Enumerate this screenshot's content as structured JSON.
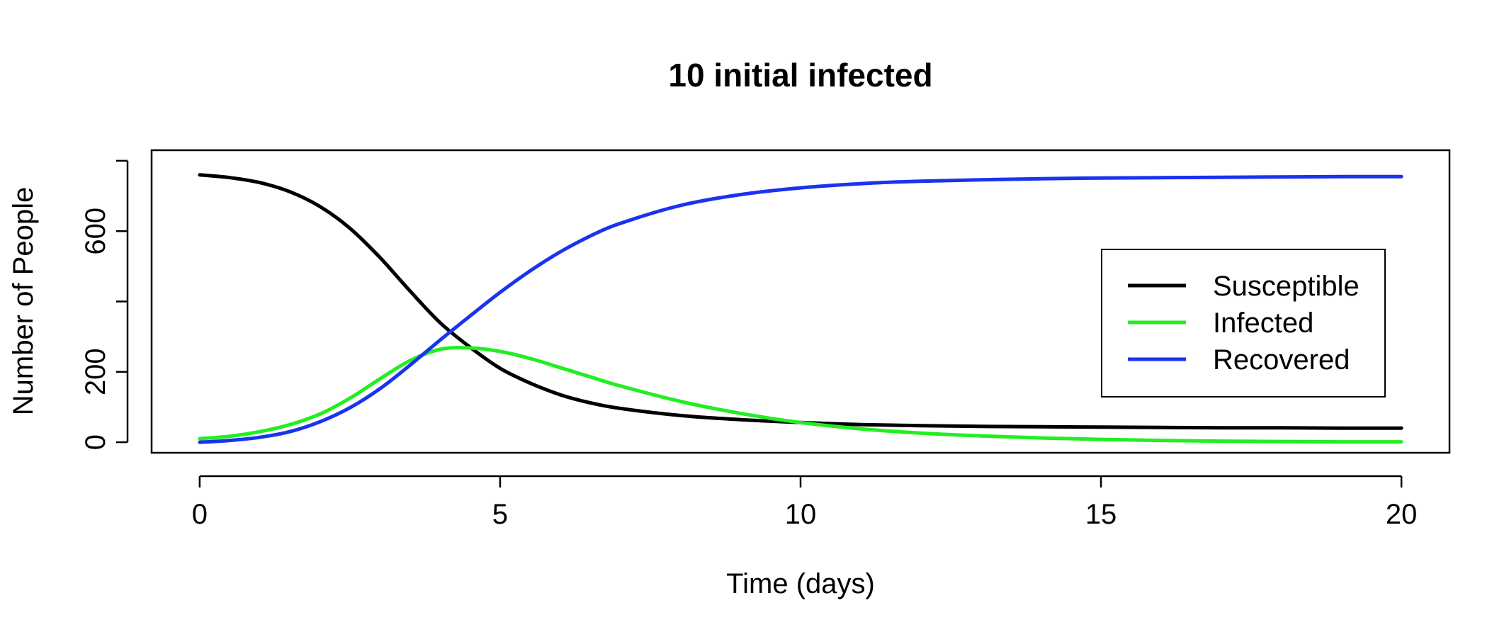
{
  "chart_data": {
    "type": "line",
    "title": "10 initial infected",
    "xlabel": "Time (days)",
    "ylabel": "Number of People",
    "xlim": [
      -0.8,
      20.8
    ],
    "ylim": [
      -30,
      830
    ],
    "x_ticks": [
      0,
      5,
      10,
      15,
      20
    ],
    "y_ticks": [
      0,
      200,
      400,
      600,
      800
    ],
    "y_tick_labels": [
      "0",
      "200",
      "",
      "600",
      ""
    ],
    "grid": false,
    "legend_position": "right",
    "series": [
      {
        "name": "Susceptible",
        "color": "#000000",
        "x": [
          0,
          0.5,
          1,
          1.5,
          2,
          2.5,
          3,
          3.5,
          4,
          4.5,
          5,
          5.5,
          6,
          6.5,
          7,
          8,
          9,
          10,
          11,
          12,
          13,
          14,
          15,
          16,
          17,
          18,
          19,
          20
        ],
        "y": [
          760,
          752,
          738,
          712,
          670,
          608,
          525,
          430,
          340,
          270,
          210,
          168,
          135,
          112,
          96,
          76,
          64,
          56,
          50,
          47,
          45,
          44,
          43,
          42,
          41,
          41,
          40,
          40
        ]
      },
      {
        "name": "Infected",
        "color": "#22ee22",
        "x": [
          0,
          0.5,
          1,
          1.5,
          2,
          2.5,
          3,
          3.5,
          4,
          4.5,
          5,
          5.5,
          6,
          6.5,
          7,
          8,
          9,
          10,
          11,
          12,
          13,
          14,
          15,
          16,
          17,
          18,
          19,
          20
        ],
        "y": [
          10,
          17,
          30,
          50,
          80,
          125,
          180,
          232,
          264,
          268,
          258,
          238,
          212,
          186,
          160,
          116,
          82,
          56,
          38,
          26,
          18,
          12,
          8,
          5,
          3,
          2,
          1,
          1
        ]
      },
      {
        "name": "Recovered",
        "color": "#1a33ee",
        "x": [
          0,
          0.5,
          1,
          1.5,
          2,
          2.5,
          3,
          3.5,
          4,
          4.5,
          5,
          5.5,
          6,
          6.5,
          7,
          8,
          9,
          10,
          11,
          12,
          13,
          14,
          15,
          16,
          17,
          18,
          19,
          20
        ],
        "y": [
          0,
          5,
          14,
          30,
          58,
          98,
          152,
          219,
          290,
          359,
          426,
          487,
          541,
          586,
          622,
          673,
          704,
          723,
          735,
          742,
          746,
          749,
          751,
          752,
          753,
          754,
          755,
          755
        ]
      }
    ]
  }
}
